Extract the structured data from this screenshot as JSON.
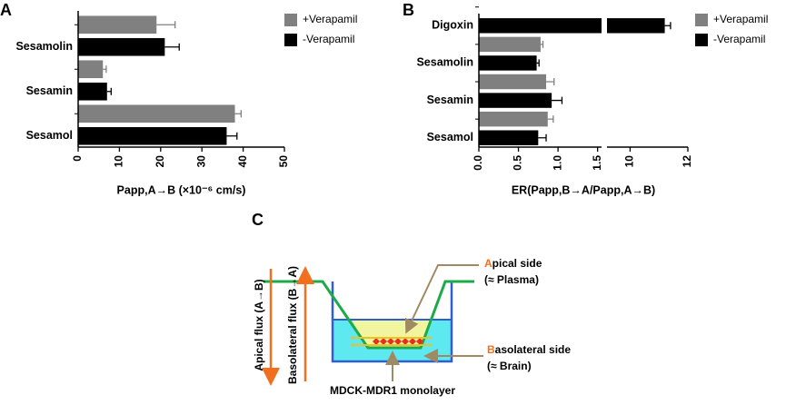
{
  "chart_data": [
    {
      "type": "hbar",
      "panel": "A",
      "categories": [
        "Sesamolin",
        "Sesamin",
        "Sesamol"
      ],
      "series": [
        {
          "name": "+Verapamil",
          "color": "#808080",
          "values": [
            19,
            6,
            38
          ],
          "errors": [
            4.5,
            0.8,
            1.5
          ]
        },
        {
          "name": "-Verapamil",
          "color": "#000000",
          "values": [
            21,
            7,
            36
          ],
          "errors": [
            3.5,
            1,
            2.5
          ]
        }
      ],
      "xlabel": "Papp,A→B (×10⁻⁶ cm/s)",
      "xlim": [
        0,
        50
      ],
      "xticks": [
        0,
        10,
        20,
        30,
        40,
        50
      ],
      "legend": "top-right"
    },
    {
      "type": "hbar",
      "panel": "B",
      "categories": [
        "Digoxin",
        "Sesamolin",
        "Sesamin",
        "Sesamol"
      ],
      "series": [
        {
          "name": "+Verapamil",
          "color": "#808080",
          "values": [
            null,
            0.78,
            0.85,
            0.87
          ],
          "errors": [
            null,
            0.03,
            0.1,
            0.07
          ]
        },
        {
          "name": "-Verapamil",
          "color": "#000000",
          "values": [
            11.2,
            0.73,
            0.92,
            0.75
          ],
          "errors": [
            0.2,
            0.03,
            0.13,
            0.1
          ]
        }
      ],
      "xlabel": "ER(Papp,B→A/Papp,A→B)",
      "xlim_segments": [
        [
          0,
          1.55
        ],
        [
          9.2,
          12
        ]
      ],
      "xticks": [
        {
          "value": 0,
          "label": "0.0"
        },
        0.5,
        {
          "value": 1,
          "label": "1.0"
        },
        1.5,
        10,
        12
      ],
      "legend": "top-right"
    }
  ],
  "diagram": {
    "panel": "C",
    "apical_side": [
      "A",
      "pical side"
    ],
    "apical_note": "(≈ Plasma)",
    "basolateral_side": [
      "B",
      "asolateral side"
    ],
    "basolateral_note": "(≈ Brain)",
    "monolayer": "MDCK-MDR1 monolayer",
    "apical_flux": "Apical flux (A→B)",
    "basolateral_flux": "Basolateral flux (B→A)"
  }
}
